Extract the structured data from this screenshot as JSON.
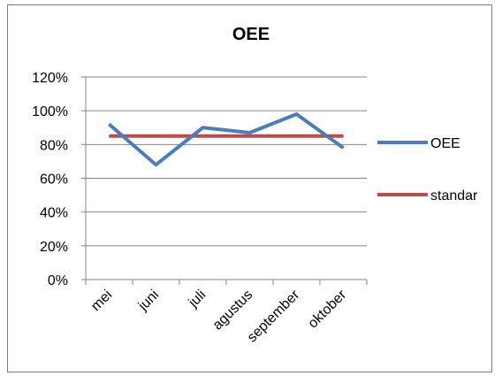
{
  "chart_data": {
    "type": "line",
    "title": "OEE",
    "categories": [
      "mei",
      "juni",
      "juli",
      "agustus",
      "september",
      "oktober"
    ],
    "series": [
      {
        "name": "OEE",
        "values": [
          92,
          68,
          90,
          87,
          98,
          78
        ],
        "color": "#4a7ebb"
      },
      {
        "name": "standar",
        "values": [
          85,
          85,
          85,
          85,
          85,
          85
        ],
        "color": "#be4b48"
      }
    ],
    "ylim": [
      0,
      120
    ],
    "yticks": [
      0,
      20,
      40,
      60,
      80,
      100,
      120
    ],
    "ytick_labels": [
      "0%",
      "20%",
      "40%",
      "60%",
      "80%",
      "100%",
      "120%"
    ],
    "grid": true,
    "legend": "right"
  }
}
